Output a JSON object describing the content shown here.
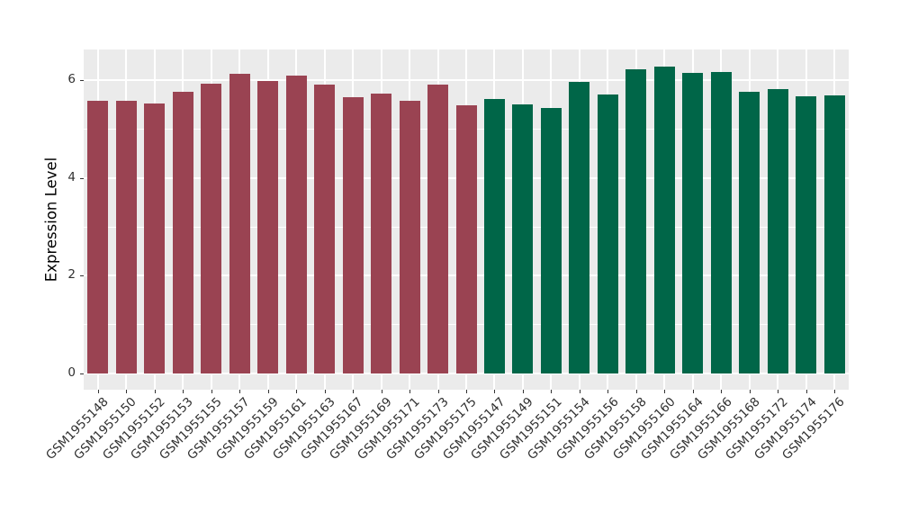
{
  "chart_data": {
    "type": "bar",
    "title": "",
    "xlabel": "",
    "ylabel": "Expression Level",
    "ylim": [
      0,
      6.63
    ],
    "yticks": [
      0,
      2,
      4,
      6
    ],
    "yminor": [
      1,
      3,
      5
    ],
    "grid": "on",
    "legend": "none",
    "panel_bg": "#EBEBEB",
    "gridline_color": "#FFFFFF",
    "axis_text_color": "#303030",
    "categories": [
      "GSM1955148",
      "GSM1955150",
      "GSM1955152",
      "GSM1955153",
      "GSM1955155",
      "GSM1955157",
      "GSM1955159",
      "GSM1955161",
      "GSM1955163",
      "GSM1955167",
      "GSM1955169",
      "GSM1955171",
      "GSM1955173",
      "GSM1955175",
      "GSM1955147",
      "GSM1955149",
      "GSM1955151",
      "GSM1955154",
      "GSM1955156",
      "GSM1955158",
      "GSM1955160",
      "GSM1955164",
      "GSM1955166",
      "GSM1955168",
      "GSM1955172",
      "GSM1955174",
      "GSM1955176"
    ],
    "values": [
      5.58,
      5.58,
      5.52,
      5.77,
      5.93,
      6.14,
      5.98,
      6.1,
      5.92,
      5.66,
      5.72,
      5.58,
      5.91,
      5.49,
      5.62,
      5.51,
      5.43,
      5.96,
      5.71,
      6.23,
      6.28,
      6.16,
      6.17,
      5.76,
      5.82,
      5.67,
      5.69
    ],
    "groups": [
      "group1",
      "group1",
      "group1",
      "group1",
      "group1",
      "group1",
      "group1",
      "group1",
      "group1",
      "group1",
      "group1",
      "group1",
      "group1",
      "group1",
      "group2",
      "group2",
      "group2",
      "group2",
      "group2",
      "group2",
      "group2",
      "group2",
      "group2",
      "group2",
      "group2",
      "group2",
      "group2"
    ],
    "group_colors": {
      "group1": "#9A4352",
      "group2": "#006648"
    }
  }
}
